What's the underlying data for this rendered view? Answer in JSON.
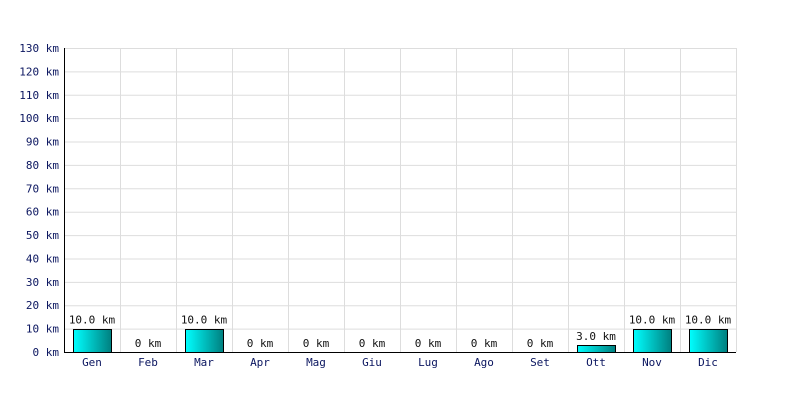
{
  "chart_data": {
    "type": "bar",
    "title": "",
    "xlabel": "",
    "ylabel": "",
    "categories": [
      "Gen",
      "Feb",
      "Mar",
      "Apr",
      "Mag",
      "Giu",
      "Lug",
      "Ago",
      "Set",
      "Ott",
      "Nov",
      "Dic"
    ],
    "values": [
      10.0,
      0,
      10.0,
      0,
      0,
      0,
      0,
      0,
      0,
      3.0,
      10.0,
      10.0
    ],
    "data_labels": [
      "10.0 km",
      "0 km",
      "10.0 km",
      "0 km",
      "0 km",
      "0 km",
      "0 km",
      "0 km",
      "0 km",
      "3.0 km",
      "10.0 km",
      "10.0 km"
    ],
    "y_ticks": [
      0,
      10,
      20,
      30,
      40,
      50,
      60,
      70,
      80,
      90,
      100,
      110,
      120,
      130
    ],
    "y_tick_labels": [
      "0 km",
      "10 km",
      "20 km",
      "30 km",
      "40 km",
      "50 km",
      "60 km",
      "70 km",
      "80 km",
      "90 km",
      "100 km",
      "110 km",
      "120 km",
      "130 km"
    ],
    "ylim": [
      0,
      130
    ],
    "grid": true,
    "legend": "none",
    "colors": {
      "bar_light": "#00ffff",
      "bar_dark": "#007f7f",
      "bar_border": "#000000",
      "grid": "#dddddd",
      "tick_text": "#0b1660",
      "label_text": "#111111"
    }
  }
}
